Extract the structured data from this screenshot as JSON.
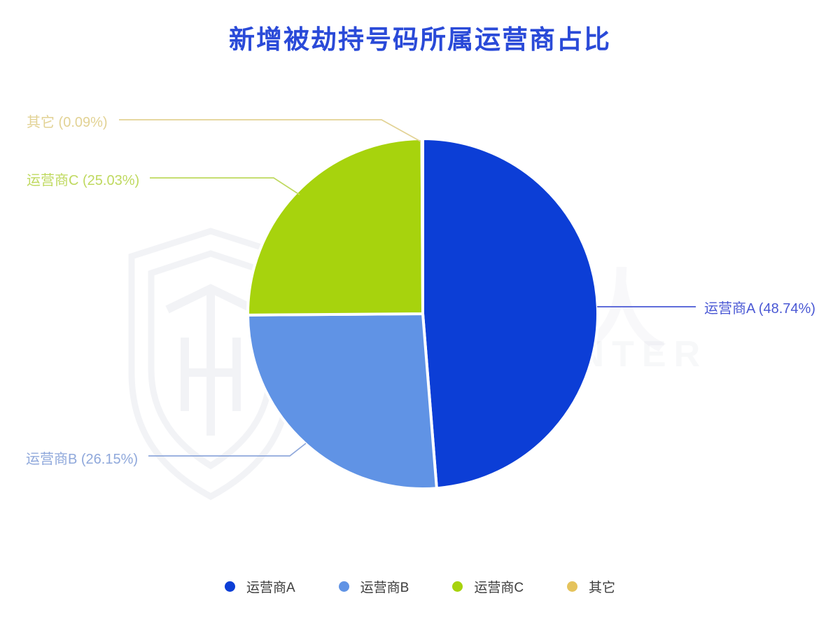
{
  "title": "新增被劫持号码所属运营商占比",
  "colors": {
    "title": "#2A4AD8",
    "legend_text": "#3D3D3D",
    "background": "#FFFFFF",
    "slice_gap": "#FFFFFF"
  },
  "chart_data": {
    "type": "pie",
    "title": "新增被劫持号码所属运营商占比",
    "unit": "%",
    "legend_position": "bottom",
    "label_style": "outside-with-leader-lines",
    "slices": [
      {
        "id": "a",
        "name": "运营商A",
        "value": 48.74,
        "color": "#0C3ED6",
        "label_color": "#4A58D4",
        "callout": "运营商A (48.74%)"
      },
      {
        "id": "b",
        "name": "运营商B",
        "value": 26.15,
        "color": "#6093E5",
        "label_color": "#8FA8DB",
        "callout": "运营商B (26.15%)"
      },
      {
        "id": "c",
        "name": "运营商C",
        "value": 25.03,
        "color": "#A7D30D",
        "label_color": "#BFD95F",
        "callout": "运营商C (25.03%)"
      },
      {
        "id": "other",
        "name": "其它",
        "value": 0.09,
        "color": "#E5C35C",
        "label_color": "#E2D294",
        "callout": "其它 (0.09%)"
      }
    ]
  },
  "watermark": {
    "cn": "威胁猎人",
    "en": "THREAT HUNTER"
  }
}
